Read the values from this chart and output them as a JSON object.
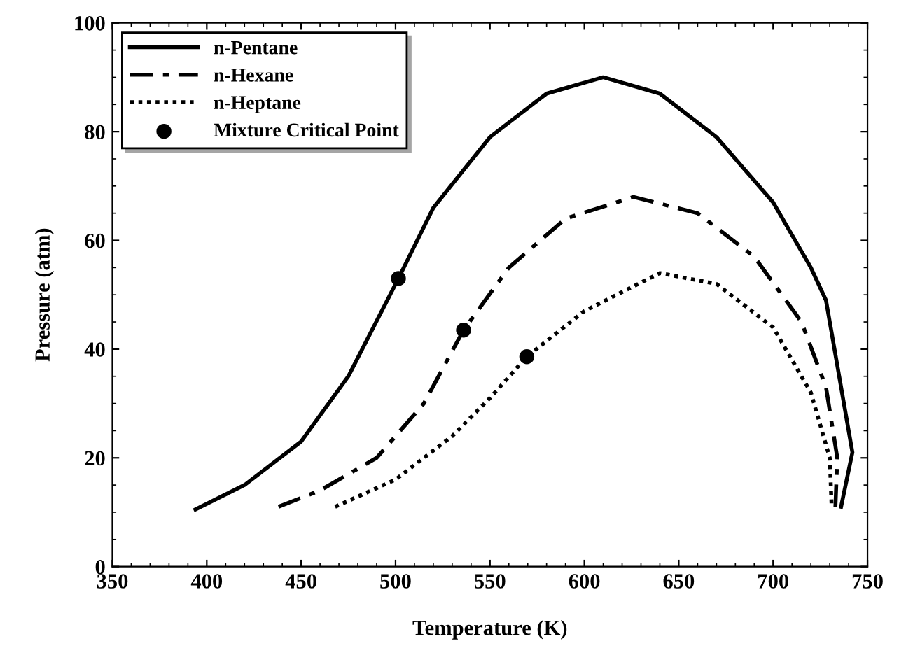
{
  "chart_data": {
    "type": "line",
    "xlabel": "Temperature (K)",
    "ylabel": "Pressure (atm)",
    "xlim": [
      350,
      750
    ],
    "xticks": [
      350,
      400,
      450,
      500,
      550,
      600,
      650,
      700,
      750
    ],
    "ylim": [
      0,
      100
    ],
    "yticks": [
      0,
      20,
      40,
      60,
      80,
      100
    ],
    "grid": false,
    "legend": "top left",
    "series": [
      {
        "name": "n-Pentane",
        "color": "#000000",
        "line_style": "solid",
        "marker": "none",
        "x": [
          394,
          420,
          450,
          475,
          501.5,
          520,
          550,
          580,
          610,
          640,
          670,
          700,
          720,
          728,
          735,
          742,
          736
        ],
        "values": [
          10.5,
          15,
          23,
          35,
          53,
          66,
          79,
          87,
          90,
          87,
          79,
          67,
          55,
          49,
          35,
          21,
          11
        ]
      },
      {
        "name": "n-Hexane",
        "color": "#000000",
        "line_style": "dashdot",
        "marker": "none",
        "x": [
          438,
          460,
          490,
          515,
          536,
          560,
          590,
          626,
          660,
          690,
          715,
          728,
          734,
          733
        ],
        "values": [
          11,
          14,
          20,
          30,
          43.5,
          55,
          64,
          68,
          65,
          57,
          45,
          33,
          20,
          11
        ]
      },
      {
        "name": "n-Heptane",
        "color": "#000000",
        "line_style": "dotted",
        "marker": "none",
        "x": [
          468,
          500,
          530,
          550,
          569.5,
          600,
          640,
          670,
          700,
          720,
          730,
          731
        ],
        "values": [
          11,
          16,
          24,
          31,
          38.6,
          47,
          54,
          52,
          44,
          32,
          20,
          11
        ]
      },
      {
        "name": "Mixture Critical Point",
        "type": "scatter",
        "color": "#000000",
        "marker": "circle",
        "x": [
          501.5,
          536,
          569.5
        ],
        "values": [
          53,
          43.5,
          38.6
        ]
      }
    ]
  }
}
